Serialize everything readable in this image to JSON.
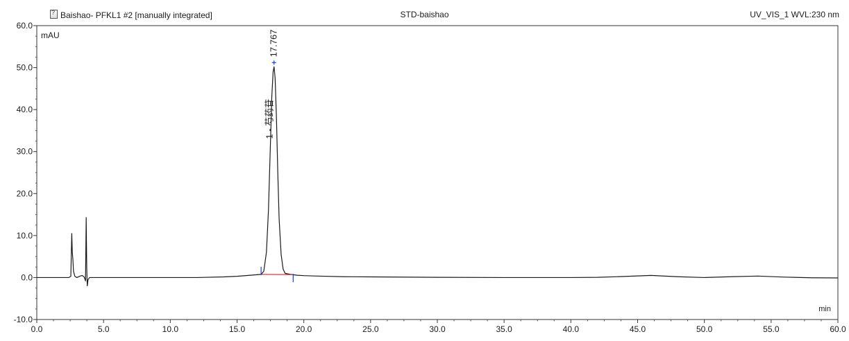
{
  "header": {
    "left_label": "Baishao- PFKL1 #2 [manually integrated]",
    "center_label": "STD-baishao",
    "right_label": "UV_VIS_1 WVL:230 nm"
  },
  "chart_data": {
    "type": "line",
    "title": "",
    "xlabel": "min",
    "ylabel": "mAU",
    "xlim": [
      0.0,
      60.0
    ],
    "ylim": [
      -10.0,
      60.0
    ],
    "x_ticks": [
      "0.0",
      "5.0",
      "10.0",
      "15.0",
      "20.0",
      "25.0",
      "30.0",
      "35.0",
      "40.0",
      "45.0",
      "50.0",
      "55.0",
      "60.0"
    ],
    "y_ticks": [
      "-10.0",
      "0.0",
      "10.0",
      "20.0",
      "30.0",
      "40.0",
      "50.0",
      "60.0"
    ],
    "series": [
      {
        "color": "#1a1a1a",
        "points": [
          [
            0.0,
            0.0
          ],
          [
            2.4,
            0.0
          ],
          [
            2.55,
            0.3
          ],
          [
            2.62,
            10.5
          ],
          [
            2.66,
            6.0
          ],
          [
            2.7,
            4.5
          ],
          [
            2.75,
            1.5
          ],
          [
            2.85,
            0.3
          ],
          [
            3.0,
            0.0
          ],
          [
            3.25,
            0.35
          ],
          [
            3.4,
            0.5
          ],
          [
            3.55,
            0.1
          ],
          [
            3.65,
            -0.8
          ],
          [
            3.7,
            14.3
          ],
          [
            3.74,
            2.5
          ],
          [
            3.78,
            -2.0
          ],
          [
            3.84,
            -0.5
          ],
          [
            3.95,
            0.0
          ],
          [
            5.0,
            0.0
          ],
          [
            8.0,
            0.0
          ],
          [
            12.0,
            0.0
          ],
          [
            14.0,
            0.15
          ],
          [
            15.0,
            0.3
          ],
          [
            16.0,
            0.55
          ],
          [
            16.8,
            0.75
          ],
          [
            17.0,
            1.5
          ],
          [
            17.2,
            6.0
          ],
          [
            17.35,
            16.0
          ],
          [
            17.5,
            32.0
          ],
          [
            17.6,
            43.0
          ],
          [
            17.7,
            49.0
          ],
          [
            17.77,
            50.2
          ],
          [
            17.85,
            47.5
          ],
          [
            17.95,
            38.0
          ],
          [
            18.05,
            25.0
          ],
          [
            18.15,
            14.0
          ],
          [
            18.3,
            5.5
          ],
          [
            18.45,
            2.0
          ],
          [
            18.6,
            1.0
          ],
          [
            19.0,
            0.75
          ],
          [
            19.5,
            0.55
          ],
          [
            20.0,
            0.45
          ],
          [
            21.0,
            0.35
          ],
          [
            23.0,
            0.2
          ],
          [
            25.0,
            0.15
          ],
          [
            30.0,
            0.05
          ],
          [
            35.0,
            0.0
          ],
          [
            40.0,
            0.0
          ],
          [
            42.0,
            0.05
          ],
          [
            44.0,
            0.25
          ],
          [
            46.0,
            0.5
          ],
          [
            48.0,
            0.2
          ],
          [
            50.0,
            0.0
          ],
          [
            52.0,
            0.2
          ],
          [
            54.0,
            0.35
          ],
          [
            56.0,
            0.1
          ],
          [
            58.0,
            -0.05
          ],
          [
            60.0,
            -0.1
          ]
        ]
      }
    ],
    "baseline": {
      "color": "#e02020",
      "x": [
        16.8,
        19.2
      ],
      "y": [
        0.75,
        0.7
      ]
    },
    "peak_markers": {
      "color": "#1a3fd6",
      "start": 16.8,
      "apex": 17.767,
      "end": 19.2
    },
    "peak_labels": {
      "apex_label": "17.767",
      "side_label": "1 - 芍药苷"
    }
  }
}
